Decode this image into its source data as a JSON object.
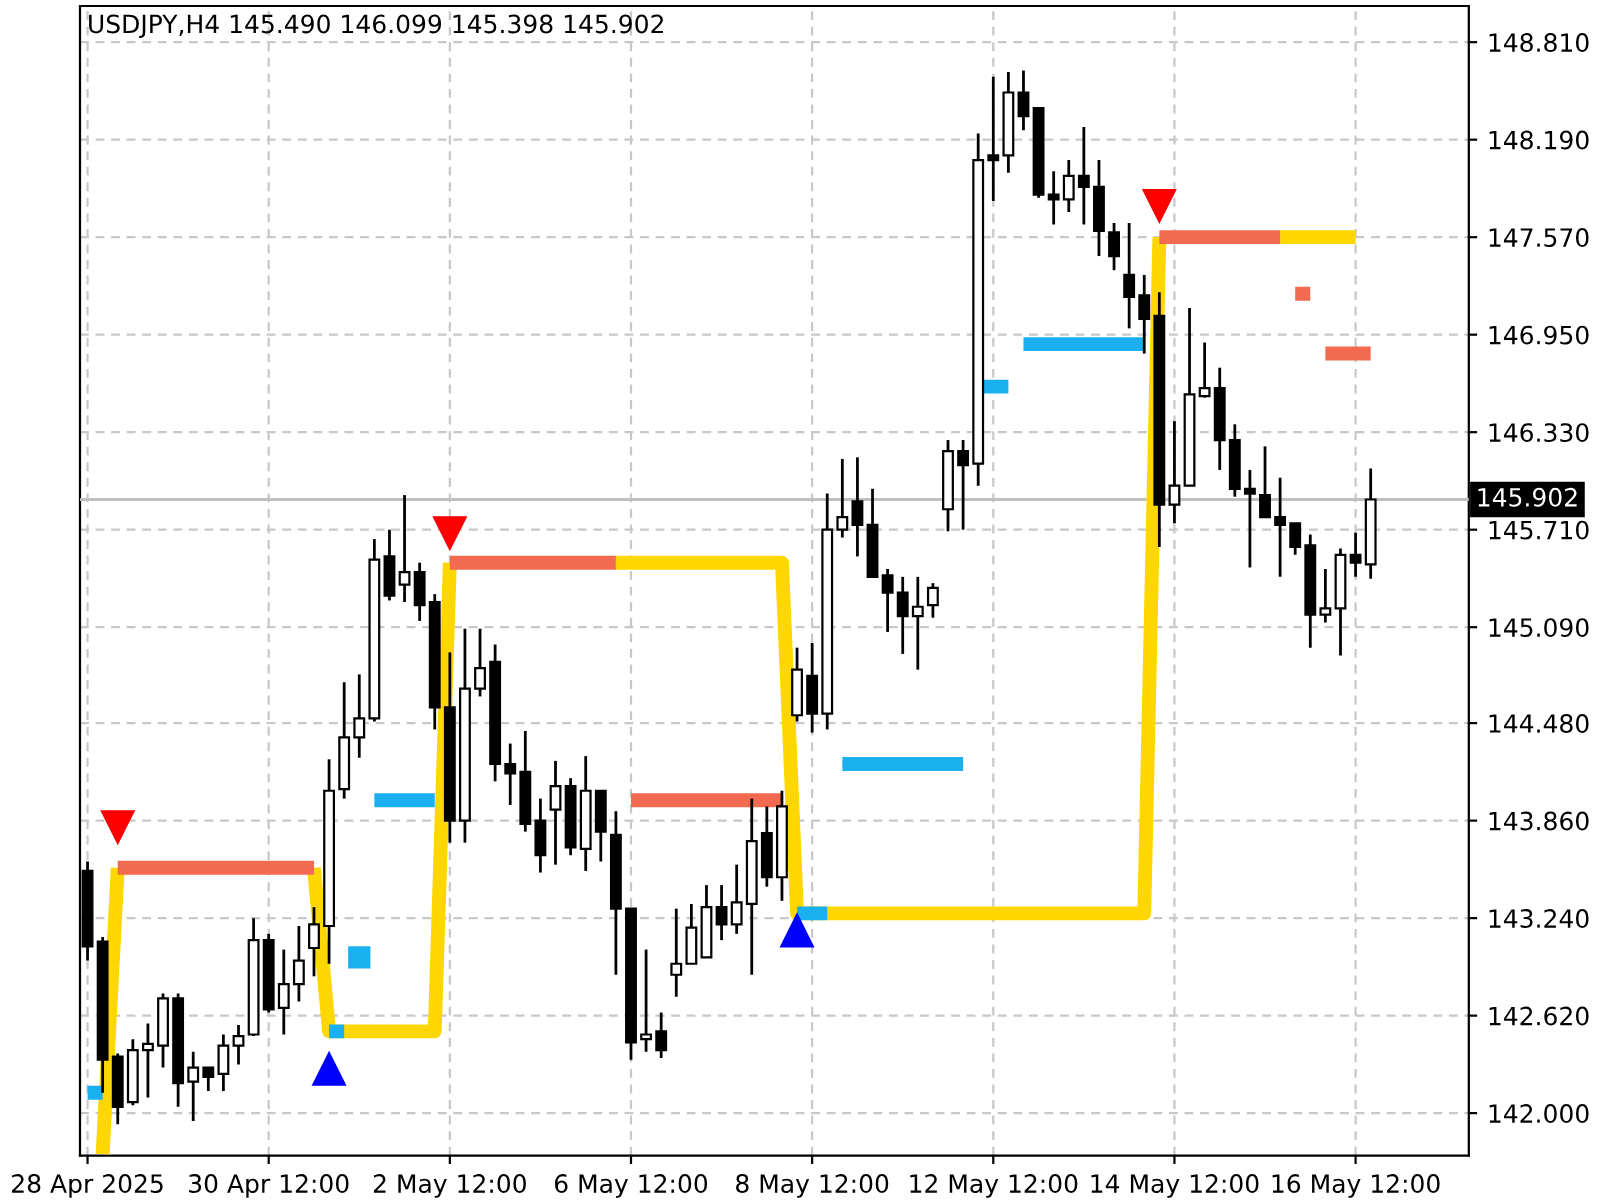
{
  "chart_data": {
    "type": "candlestick",
    "title": "USDJPY,H4 145.490 146.099 145.398 145.902",
    "categories": [
      "28 Apr 2025",
      null,
      null,
      null,
      null,
      null,
      null,
      null,
      null,
      null,
      null,
      null,
      "30 Apr 12:00",
      null,
      null,
      null,
      null,
      null,
      null,
      null,
      null,
      null,
      null,
      null,
      "2 May 12:00",
      null,
      null,
      null,
      null,
      null,
      null,
      null,
      null,
      null,
      null,
      null,
      "6 May 12:00",
      null,
      null,
      null,
      null,
      null,
      null,
      null,
      null,
      null,
      null,
      null,
      "8 May 12:00",
      null,
      null,
      null,
      null,
      null,
      null,
      null,
      null,
      null,
      null,
      null,
      "12 May 12:00",
      null,
      null,
      null,
      null,
      null,
      null,
      null,
      null,
      null,
      null,
      null,
      "14 May 12:00",
      null,
      null,
      null,
      null,
      null,
      null,
      null,
      null,
      null,
      null,
      null,
      "16 May 12:00",
      null
    ],
    "ohlc": [
      [
        143.54,
        143.6,
        142.97,
        143.06
      ],
      [
        143.09,
        143.12,
        142.13,
        142.34
      ],
      [
        142.36,
        142.38,
        141.93,
        142.04
      ],
      [
        142.07,
        142.47,
        142.05,
        142.4
      ],
      [
        142.4,
        142.57,
        142.1,
        142.44
      ],
      [
        142.43,
        142.76,
        142.29,
        142.73
      ],
      [
        142.73,
        142.76,
        142.04,
        142.19
      ],
      [
        142.2,
        142.39,
        141.95,
        142.29
      ],
      [
        142.29,
        142.29,
        142.14,
        142.23
      ],
      [
        142.25,
        142.5,
        142.14,
        142.43
      ],
      [
        142.43,
        142.56,
        142.31,
        142.49
      ],
      [
        142.5,
        143.24,
        142.49,
        143.1
      ],
      [
        143.1,
        143.14,
        142.64,
        142.66
      ],
      [
        142.67,
        143.04,
        142.5,
        142.82
      ],
      [
        142.82,
        143.19,
        142.71,
        142.97
      ],
      [
        143.05,
        143.31,
        142.87,
        143.2
      ],
      [
        143.19,
        144.25,
        142.95,
        144.05
      ],
      [
        144.06,
        144.74,
        144.0,
        144.39
      ],
      [
        144.39,
        144.79,
        144.26,
        144.51
      ],
      [
        144.51,
        145.65,
        144.49,
        145.52
      ],
      [
        145.54,
        145.71,
        145.26,
        145.29
      ],
      [
        145.36,
        145.93,
        145.25,
        145.44
      ],
      [
        145.44,
        145.5,
        145.13,
        145.23
      ],
      [
        145.25,
        145.3,
        144.44,
        144.58
      ],
      [
        144.58,
        144.93,
        143.72,
        143.86
      ],
      [
        143.86,
        145.08,
        143.72,
        144.7
      ],
      [
        144.7,
        145.08,
        144.65,
        144.83
      ],
      [
        144.87,
        144.98,
        144.11,
        144.22
      ],
      [
        144.22,
        144.35,
        143.96,
        144.16
      ],
      [
        144.17,
        144.43,
        143.79,
        143.84
      ],
      [
        143.86,
        144.0,
        143.53,
        143.64
      ],
      [
        143.93,
        144.24,
        143.58,
        144.08
      ],
      [
        144.08,
        144.13,
        143.64,
        143.69
      ],
      [
        143.68,
        144.27,
        143.54,
        144.05
      ],
      [
        144.05,
        144.05,
        143.6,
        143.79
      ],
      [
        143.77,
        143.92,
        142.88,
        143.3
      ],
      [
        143.3,
        143.3,
        142.34,
        142.45
      ],
      [
        142.47,
        143.04,
        142.39,
        142.5
      ],
      [
        142.52,
        142.64,
        142.35,
        142.4
      ],
      [
        142.88,
        143.3,
        142.74,
        142.95
      ],
      [
        142.95,
        143.33,
        142.95,
        143.18
      ],
      [
        142.99,
        143.45,
        142.99,
        143.31
      ],
      [
        143.31,
        143.45,
        143.1,
        143.2
      ],
      [
        143.2,
        143.58,
        143.14,
        143.34
      ],
      [
        143.33,
        144.0,
        142.88,
        143.73
      ],
      [
        143.78,
        143.95,
        143.44,
        143.5
      ],
      [
        143.5,
        144.05,
        143.35,
        143.95
      ],
      [
        144.53,
        144.96,
        144.49,
        144.82
      ],
      [
        144.78,
        144.99,
        144.42,
        144.54
      ],
      [
        144.54,
        145.94,
        144.44,
        145.71
      ],
      [
        145.71,
        146.16,
        145.66,
        145.79
      ],
      [
        145.89,
        146.17,
        145.54,
        145.74
      ],
      [
        145.74,
        145.97,
        145.41,
        145.41
      ],
      [
        145.42,
        145.46,
        145.06,
        145.31
      ],
      [
        145.31,
        145.41,
        144.92,
        145.16
      ],
      [
        145.16,
        145.41,
        144.82,
        145.22
      ],
      [
        145.23,
        145.37,
        145.15,
        145.34
      ],
      [
        145.84,
        146.28,
        145.7,
        146.21
      ],
      [
        146.21,
        146.28,
        145.71,
        146.12
      ],
      [
        146.13,
        148.23,
        145.99,
        148.06
      ],
      [
        148.09,
        148.59,
        147.8,
        148.06
      ],
      [
        148.09,
        148.62,
        147.98,
        148.49
      ],
      [
        148.49,
        148.63,
        148.25,
        148.34
      ],
      [
        148.39,
        148.39,
        147.82,
        147.84
      ],
      [
        147.84,
        147.99,
        147.65,
        147.81
      ],
      [
        147.81,
        148.06,
        147.73,
        147.96
      ],
      [
        147.96,
        148.27,
        147.65,
        147.89
      ],
      [
        147.89,
        148.06,
        147.45,
        147.61
      ],
      [
        147.6,
        147.66,
        147.36,
        147.45
      ],
      [
        147.33,
        147.66,
        146.99,
        147.19
      ],
      [
        147.2,
        147.33,
        146.83,
        147.05
      ],
      [
        147.07,
        147.22,
        145.6,
        145.87
      ],
      [
        145.87,
        146.4,
        145.75,
        145.99
      ],
      [
        145.99,
        147.12,
        145.99,
        146.57
      ],
      [
        146.56,
        146.9,
        146.55,
        146.61
      ],
      [
        146.61,
        146.74,
        146.09,
        146.28
      ],
      [
        146.28,
        146.38,
        145.92,
        145.97
      ],
      [
        145.97,
        146.09,
        145.47,
        145.94
      ],
      [
        145.93,
        146.24,
        145.79,
        145.79
      ],
      [
        145.79,
        146.04,
        145.41,
        145.74
      ],
      [
        145.75,
        145.75,
        145.55,
        145.6
      ],
      [
        145.61,
        145.68,
        144.96,
        145.17
      ],
      [
        145.17,
        145.46,
        145.12,
        145.21
      ],
      [
        145.21,
        145.59,
        144.91,
        145.55
      ],
      [
        145.55,
        145.69,
        145.41,
        145.5
      ],
      [
        145.49,
        146.099,
        145.398,
        145.902
      ]
    ],
    "series": [
      {
        "type": "line",
        "color": "#ffd700",
        "values": [
          null,
          141.74,
          143.56,
          null,
          null,
          null,
          null,
          null,
          null,
          null,
          null,
          null,
          null,
          null,
          null,
          143.56,
          142.52,
          142.52,
          142.52,
          142.52,
          142.52,
          142.52,
          142.52,
          142.52,
          145.5,
          null,
          null,
          null,
          null,
          null,
          null,
          null,
          null,
          null,
          null,
          145.5,
          145.5,
          145.5,
          145.5,
          145.5,
          145.5,
          145.5,
          145.5,
          145.5,
          145.5,
          145.5,
          145.5,
          143.27,
          143.27,
          143.27,
          143.27,
          143.27,
          143.27,
          143.27,
          143.27,
          143.27,
          143.27,
          143.27,
          143.27,
          143.27,
          143.27,
          143.27,
          143.27,
          143.27,
          143.27,
          143.27,
          143.27,
          143.27,
          143.27,
          143.27,
          143.27,
          147.57,
          null,
          null,
          null,
          null,
          null,
          null,
          null,
          147.57,
          147.57,
          147.57,
          147.57,
          147.57,
          147.57,
          null
        ]
      },
      {
        "type": "line",
        "color": "#f26a50",
        "values": [
          null,
          null,
          143.56,
          143.56,
          143.56,
          143.56,
          143.56,
          143.56,
          143.56,
          143.56,
          143.56,
          143.56,
          143.56,
          143.56,
          143.56,
          143.56,
          null,
          null,
          null,
          null,
          null,
          null,
          null,
          null,
          null,
          null,
          null,
          null,
          null,
          null,
          null,
          null,
          null,
          null,
          null,
          null,
          143.99,
          143.99,
          143.99,
          143.99,
          143.99,
          143.99,
          143.99,
          143.99,
          143.99,
          143.99,
          143.99,
          null,
          null,
          null,
          null,
          null,
          null,
          null,
          null,
          null,
          null,
          null,
          null,
          null,
          null,
          null,
          null,
          null,
          null,
          null,
          null,
          null,
          null,
          null,
          null,
          null,
          null,
          null,
          null,
          null,
          null,
          null,
          null,
          null,
          147.21,
          147.21,
          null,
          null,
          null,
          null
        ]
      },
      {
        "type": "line",
        "color": "#f26a50",
        "values": [
          null,
          null,
          null,
          null,
          null,
          null,
          null,
          null,
          null,
          null,
          null,
          null,
          null,
          null,
          null,
          null,
          null,
          null,
          null,
          null,
          null,
          null,
          null,
          null,
          145.5,
          145.5,
          145.5,
          145.5,
          145.5,
          145.5,
          145.5,
          145.5,
          145.5,
          145.5,
          145.5,
          145.5,
          null,
          null,
          null,
          null,
          null,
          null,
          null,
          null,
          null,
          null,
          null,
          null,
          null,
          null,
          null,
          null,
          null,
          null,
          null,
          null,
          null,
          null,
          null,
          null,
          null,
          null,
          null,
          null,
          null,
          null,
          null,
          null,
          null,
          null,
          null,
          147.57,
          147.57,
          147.57,
          147.57,
          147.57,
          147.57,
          147.57,
          147.57,
          147.57,
          null,
          null,
          146.83,
          146.83,
          146.83,
          146.83
        ]
      },
      {
        "type": "line",
        "color": "#1ab0f0",
        "values": [
          142.13,
          142.13,
          null,
          null,
          null,
          null,
          null,
          null,
          null,
          null,
          null,
          null,
          null,
          null,
          null,
          null,
          142.52,
          142.52,
          null,
          143.99,
          143.99,
          143.99,
          143.99,
          143.99,
          null,
          null,
          null,
          null,
          null,
          null,
          null,
          null,
          null,
          null,
          null,
          null,
          null,
          null,
          null,
          null,
          null,
          null,
          null,
          null,
          null,
          null,
          null,
          null,
          null,
          null,
          144.22,
          144.22,
          144.22,
          144.22,
          144.22,
          144.22,
          144.22,
          144.22,
          144.22,
          null,
          null,
          null,
          146.89,
          146.89,
          146.89,
          146.89,
          146.89,
          146.89,
          146.89,
          146.89,
          146.89,
          null,
          null,
          null,
          null,
          null,
          null,
          null,
          null,
          null,
          null,
          null,
          null,
          null,
          null,
          null
        ]
      },
      {
        "type": "line",
        "color": "#1ab0f0",
        "values": [
          null,
          null,
          null,
          null,
          null,
          null,
          null,
          null,
          null,
          null,
          null,
          null,
          null,
          null,
          null,
          null,
          null,
          null,
          null,
          null,
          null,
          null,
          null,
          null,
          null,
          null,
          null,
          null,
          null,
          null,
          null,
          null,
          null,
          null,
          null,
          null,
          null,
          null,
          null,
          null,
          null,
          null,
          null,
          null,
          null,
          null,
          null,
          143.27,
          143.27,
          143.27,
          null,
          null,
          null,
          null,
          null,
          null,
          null,
          null,
          null,
          146.62,
          146.62,
          146.62,
          null,
          null,
          null,
          null,
          null,
          null,
          null,
          null,
          null,
          null,
          null,
          null,
          null,
          null,
          null,
          null,
          null,
          null,
          null,
          null,
          null,
          null,
          null,
          null
        ]
      },
      {
        "type": "scatter",
        "marker": "square",
        "color": "#1ab0f0",
        "values": [
          null,
          null,
          null,
          null,
          null,
          null,
          null,
          null,
          null,
          null,
          null,
          null,
          null,
          null,
          null,
          null,
          null,
          null,
          142.99,
          null,
          null,
          null,
          null,
          null,
          null,
          null,
          null,
          null,
          null,
          null,
          null,
          null,
          null,
          null,
          null,
          null,
          null,
          null,
          null,
          null,
          null,
          null,
          null,
          null,
          null,
          null,
          null,
          null,
          null,
          null,
          null,
          null,
          null,
          null,
          null,
          null,
          null,
          null,
          null,
          null,
          null,
          null,
          null,
          null,
          null,
          null,
          null,
          null,
          null,
          null,
          null,
          null,
          null,
          null,
          null,
          null,
          null,
          null,
          null,
          null,
          null,
          null,
          null,
          null,
          null,
          null
        ]
      },
      {
        "type": "scatter",
        "marker": "triangle",
        "color": "#ff0000",
        "values": [
          null,
          null,
          143.82,
          null,
          null,
          null,
          null,
          null,
          null,
          null,
          null,
          null,
          null,
          null,
          null,
          null,
          null,
          null,
          null,
          null,
          null,
          null,
          null,
          null,
          145.69,
          null,
          null,
          null,
          null,
          null,
          null,
          null,
          null,
          null,
          null,
          null,
          null,
          null,
          null,
          null,
          null,
          null,
          null,
          null,
          null,
          null,
          null,
          null,
          null,
          null,
          null,
          null,
          null,
          null,
          null,
          null,
          null,
          null,
          null,
          null,
          null,
          null,
          null,
          null,
          null,
          null,
          null,
          null,
          null,
          null,
          null,
          147.77,
          null,
          null,
          null,
          null,
          null,
          null,
          null,
          null,
          null,
          null,
          null,
          null,
          null,
          null
        ]
      },
      {
        "type": "scatter",
        "marker": "triangle",
        "color": "#0000ff",
        "values": [
          null,
          null,
          null,
          null,
          null,
          null,
          null,
          null,
          null,
          null,
          null,
          null,
          null,
          null,
          null,
          null,
          142.28,
          null,
          null,
          null,
          null,
          null,
          null,
          null,
          null,
          null,
          null,
          null,
          null,
          null,
          null,
          null,
          null,
          null,
          null,
          null,
          null,
          null,
          null,
          null,
          null,
          null,
          null,
          null,
          null,
          null,
          null,
          143.16,
          null,
          null,
          null,
          null,
          null,
          null,
          null,
          null,
          null,
          null,
          null,
          null,
          null,
          null,
          null,
          null,
          null,
          null,
          null,
          null,
          null,
          null,
          null,
          null,
          null,
          null,
          null,
          null,
          null,
          null,
          null,
          null,
          null,
          null,
          null,
          null,
          null,
          null
        ]
      }
    ],
    "ylim": [
      141.73,
      149.04
    ],
    "yticks": [
      {
        "value": 142.0,
        "label": "142.000"
      },
      {
        "value": 142.62,
        "label": "142.620"
      },
      {
        "value": 143.24,
        "label": "143.240"
      },
      {
        "value": 143.86,
        "label": "143.860"
      },
      {
        "value": 144.48,
        "label": "144.480"
      },
      {
        "value": 145.09,
        "label": "145.090"
      },
      {
        "value": 145.71,
        "label": "145.710"
      },
      {
        "value": 146.33,
        "label": "146.330"
      },
      {
        "value": 146.95,
        "label": "146.950"
      },
      {
        "value": 147.57,
        "label": "147.570"
      },
      {
        "value": 148.19,
        "label": "148.190"
      },
      {
        "value": 148.81,
        "label": "148.810"
      }
    ],
    "ref_lines": [
      {
        "axis": "y",
        "value": 145.902,
        "label": "145.902",
        "color": "#c0c0c0"
      }
    ],
    "grid": true
  }
}
